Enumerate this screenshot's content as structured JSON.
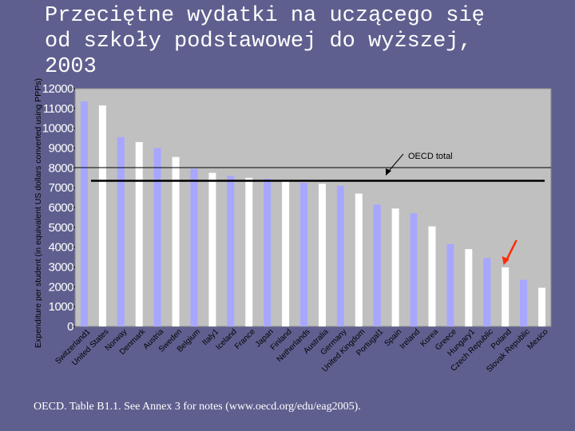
{
  "slide": {
    "title_lines": [
      "Przeciętne wydatki na uczącego się",
      "od szkoły podstawowej do wyższej,",
      "2003"
    ],
    "footnote": "OECD. Table B1.1. See Annex 3 for notes (www.oecd.org/edu/eag2005)."
  },
  "chart_data": {
    "type": "bar",
    "title": "",
    "xlabel": "",
    "ylabel": "Expenditure per student (in equivalent US dollars converted using PPPs)",
    "ylim": [
      0,
      12000
    ],
    "yticks": [
      0,
      1000,
      2000,
      3000,
      4000,
      5000,
      6000,
      7000,
      8000,
      9000,
      10000,
      11000,
      12000
    ],
    "grid": false,
    "categories": [
      "Switzerland1",
      "United States",
      "Norway",
      "Denmark",
      "Austria",
      "Sweden",
      "Belgium",
      "Italy1",
      "Iceland",
      "France",
      "Japan",
      "Finland",
      "Netherlands",
      "Australia",
      "Germany",
      "United Kingdom",
      "Portugal1",
      "Spain",
      "Ireland",
      "Korea",
      "Greece",
      "Hungary1",
      "Czech Republic",
      "Poland",
      "Slovak Republic",
      "Mexico"
    ],
    "values": [
      11350,
      11150,
      9550,
      9300,
      9000,
      8550,
      7950,
      7750,
      7600,
      7500,
      7450,
      7350,
      7250,
      7200,
      7100,
      6700,
      6150,
      5950,
      5700,
      5050,
      4150,
      3900,
      3450,
      2980,
      2350,
      1950
    ],
    "bar_colors": {
      "odd": "#a7a7ff",
      "even": "#ffffff"
    },
    "reference_line": {
      "label": "OECD  total",
      "value": 7350
    },
    "highlight": {
      "category": "Poland",
      "color": "#ff2a00"
    }
  }
}
